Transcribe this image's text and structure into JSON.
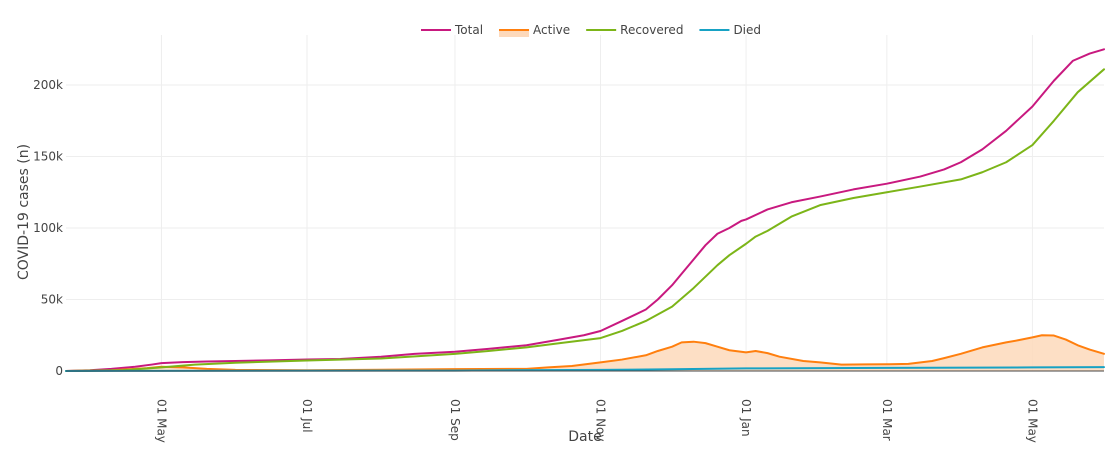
{
  "chart_data": {
    "type": "line",
    "xlabel": "Date",
    "ylabel": "COVID-19 cases (n)",
    "xlim": [
      "2020-03-22",
      "2021-05-31"
    ],
    "ylim": [
      0,
      235000
    ],
    "grid": true,
    "legend_placement": "top-center",
    "x_ticks": [
      {
        "date": "2020-05-01",
        "label": "01 May"
      },
      {
        "date": "2020-07-01",
        "label": "01 Jul"
      },
      {
        "date": "2020-09-01",
        "label": "01 Sep"
      },
      {
        "date": "2020-11-01",
        "label": "01 Nov"
      },
      {
        "date": "2021-01-01",
        "label": "01 Jan"
      },
      {
        "date": "2021-03-01",
        "label": "01 Mar"
      },
      {
        "date": "2021-05-01",
        "label": "01 May"
      }
    ],
    "y_ticks": [
      {
        "value": 0,
        "label": "0"
      },
      {
        "value": 50000,
        "label": "50k"
      },
      {
        "value": 100000,
        "label": "100k"
      },
      {
        "value": 150000,
        "label": "150k"
      },
      {
        "value": 200000,
        "label": "200k"
      }
    ],
    "series": [
      {
        "name": "Total",
        "color": "#c8197f",
        "fill": false,
        "points": [
          [
            "2020-03-22",
            0
          ],
          [
            "2020-04-01",
            500
          ],
          [
            "2020-04-10",
            1500
          ],
          [
            "2020-04-20",
            3000
          ],
          [
            "2020-04-27",
            4500
          ],
          [
            "2020-05-01",
            5500
          ],
          [
            "2020-05-10",
            6200
          ],
          [
            "2020-05-20",
            6600
          ],
          [
            "2020-06-01",
            7000
          ],
          [
            "2020-06-15",
            7400
          ],
          [
            "2020-07-01",
            8000
          ],
          [
            "2020-07-15",
            8400
          ],
          [
            "2020-08-01",
            10000
          ],
          [
            "2020-08-15",
            12000
          ],
          [
            "2020-09-01",
            13500
          ],
          [
            "2020-09-15",
            15500
          ],
          [
            "2020-10-01",
            18000
          ],
          [
            "2020-10-15",
            22000
          ],
          [
            "2020-10-25",
            25000
          ],
          [
            "2020-11-01",
            28000
          ],
          [
            "2020-11-10",
            35000
          ],
          [
            "2020-11-20",
            43000
          ],
          [
            "2020-11-25",
            50000
          ],
          [
            "2020-12-01",
            60000
          ],
          [
            "2020-12-05",
            68000
          ],
          [
            "2020-12-10",
            78000
          ],
          [
            "2020-12-15",
            88000
          ],
          [
            "2020-12-20",
            96000
          ],
          [
            "2020-12-25",
            100000
          ],
          [
            "2020-12-30",
            105000
          ],
          [
            "2021-01-01",
            106000
          ],
          [
            "2021-01-10",
            113000
          ],
          [
            "2021-01-20",
            118000
          ],
          [
            "2021-02-01",
            122000
          ],
          [
            "2021-02-15",
            127000
          ],
          [
            "2021-03-01",
            131000
          ],
          [
            "2021-03-15",
            136000
          ],
          [
            "2021-03-25",
            141000
          ],
          [
            "2021-04-01",
            146000
          ],
          [
            "2021-04-10",
            155000
          ],
          [
            "2021-04-20",
            168000
          ],
          [
            "2021-05-01",
            185000
          ],
          [
            "2021-05-10",
            203000
          ],
          [
            "2021-05-18",
            217000
          ],
          [
            "2021-05-25",
            222000
          ],
          [
            "2021-05-31",
            225000
          ]
        ]
      },
      {
        "name": "Active",
        "color": "#ff7f0e",
        "fill": true,
        "fill_color": "#fdd9bb",
        "points": [
          [
            "2020-03-22",
            0
          ],
          [
            "2020-04-10",
            500
          ],
          [
            "2020-04-25",
            2000
          ],
          [
            "2020-05-01",
            3000
          ],
          [
            "2020-05-10",
            2500
          ],
          [
            "2020-05-20",
            1500
          ],
          [
            "2020-06-01",
            800
          ],
          [
            "2020-07-01",
            500
          ],
          [
            "2020-08-01",
            900
          ],
          [
            "2020-09-01",
            1300
          ],
          [
            "2020-10-01",
            1500
          ],
          [
            "2020-10-10",
            2500
          ],
          [
            "2020-10-20",
            3500
          ],
          [
            "2020-11-01",
            6000
          ],
          [
            "2020-11-10",
            8000
          ],
          [
            "2020-11-20",
            11000
          ],
          [
            "2020-11-25",
            14000
          ],
          [
            "2020-12-01",
            17000
          ],
          [
            "2020-12-05",
            20000
          ],
          [
            "2020-12-10",
            20500
          ],
          [
            "2020-12-15",
            19500
          ],
          [
            "2020-12-20",
            17000
          ],
          [
            "2020-12-25",
            14500
          ],
          [
            "2021-01-01",
            13000
          ],
          [
            "2021-01-05",
            14000
          ],
          [
            "2021-01-10",
            12500
          ],
          [
            "2021-01-15",
            10000
          ],
          [
            "2021-01-25",
            7000
          ],
          [
            "2021-02-01",
            6000
          ],
          [
            "2021-02-10",
            4500
          ],
          [
            "2021-02-20",
            4600
          ],
          [
            "2021-03-01",
            4700
          ],
          [
            "2021-03-10",
            5000
          ],
          [
            "2021-03-20",
            7000
          ],
          [
            "2021-03-25",
            9000
          ],
          [
            "2021-04-01",
            12000
          ],
          [
            "2021-04-10",
            16500
          ],
          [
            "2021-04-20",
            20000
          ],
          [
            "2021-04-25",
            21500
          ],
          [
            "2021-05-01",
            23500
          ],
          [
            "2021-05-05",
            25000
          ],
          [
            "2021-05-10",
            24800
          ],
          [
            "2021-05-15",
            22000
          ],
          [
            "2021-05-20",
            18000
          ],
          [
            "2021-05-25",
            15000
          ],
          [
            "2021-05-31",
            12000
          ]
        ]
      },
      {
        "name": "Recovered",
        "color": "#7cb518",
        "fill": false,
        "points": [
          [
            "2020-03-22",
            0
          ],
          [
            "2020-04-15",
            500
          ],
          [
            "2020-05-01",
            2500
          ],
          [
            "2020-05-15",
            4500
          ],
          [
            "2020-06-01",
            5800
          ],
          [
            "2020-07-01",
            7300
          ],
          [
            "2020-08-01",
            8700
          ],
          [
            "2020-09-01",
            12000
          ],
          [
            "2020-09-15",
            14000
          ],
          [
            "2020-10-01",
            16500
          ],
          [
            "2020-10-15",
            19500
          ],
          [
            "2020-11-01",
            23000
          ],
          [
            "2020-11-10",
            28000
          ],
          [
            "2020-11-20",
            35000
          ],
          [
            "2020-12-01",
            45000
          ],
          [
            "2020-12-10",
            58000
          ],
          [
            "2020-12-20",
            74000
          ],
          [
            "2020-12-25",
            81000
          ],
          [
            "2021-01-01",
            89000
          ],
          [
            "2021-01-05",
            94000
          ],
          [
            "2021-01-10",
            98000
          ],
          [
            "2021-01-15",
            103000
          ],
          [
            "2021-01-20",
            108000
          ],
          [
            "2021-02-01",
            116000
          ],
          [
            "2021-02-15",
            121000
          ],
          [
            "2021-03-01",
            125000
          ],
          [
            "2021-03-15",
            129000
          ],
          [
            "2021-04-01",
            134000
          ],
          [
            "2021-04-10",
            139000
          ],
          [
            "2021-04-20",
            146000
          ],
          [
            "2021-05-01",
            158000
          ],
          [
            "2021-05-10",
            175000
          ],
          [
            "2021-05-20",
            195000
          ],
          [
            "2021-05-31",
            211000
          ]
        ]
      },
      {
        "name": "Died",
        "color": "#17a2c4",
        "fill": false,
        "points": [
          [
            "2020-03-22",
            0
          ],
          [
            "2020-05-01",
            100
          ],
          [
            "2020-09-01",
            300
          ],
          [
            "2020-11-01",
            800
          ],
          [
            "2020-12-01",
            1200
          ],
          [
            "2021-01-01",
            1800
          ],
          [
            "2021-03-01",
            2200
          ],
          [
            "2021-05-01",
            2500
          ],
          [
            "2021-05-31",
            2700
          ]
        ]
      }
    ]
  }
}
